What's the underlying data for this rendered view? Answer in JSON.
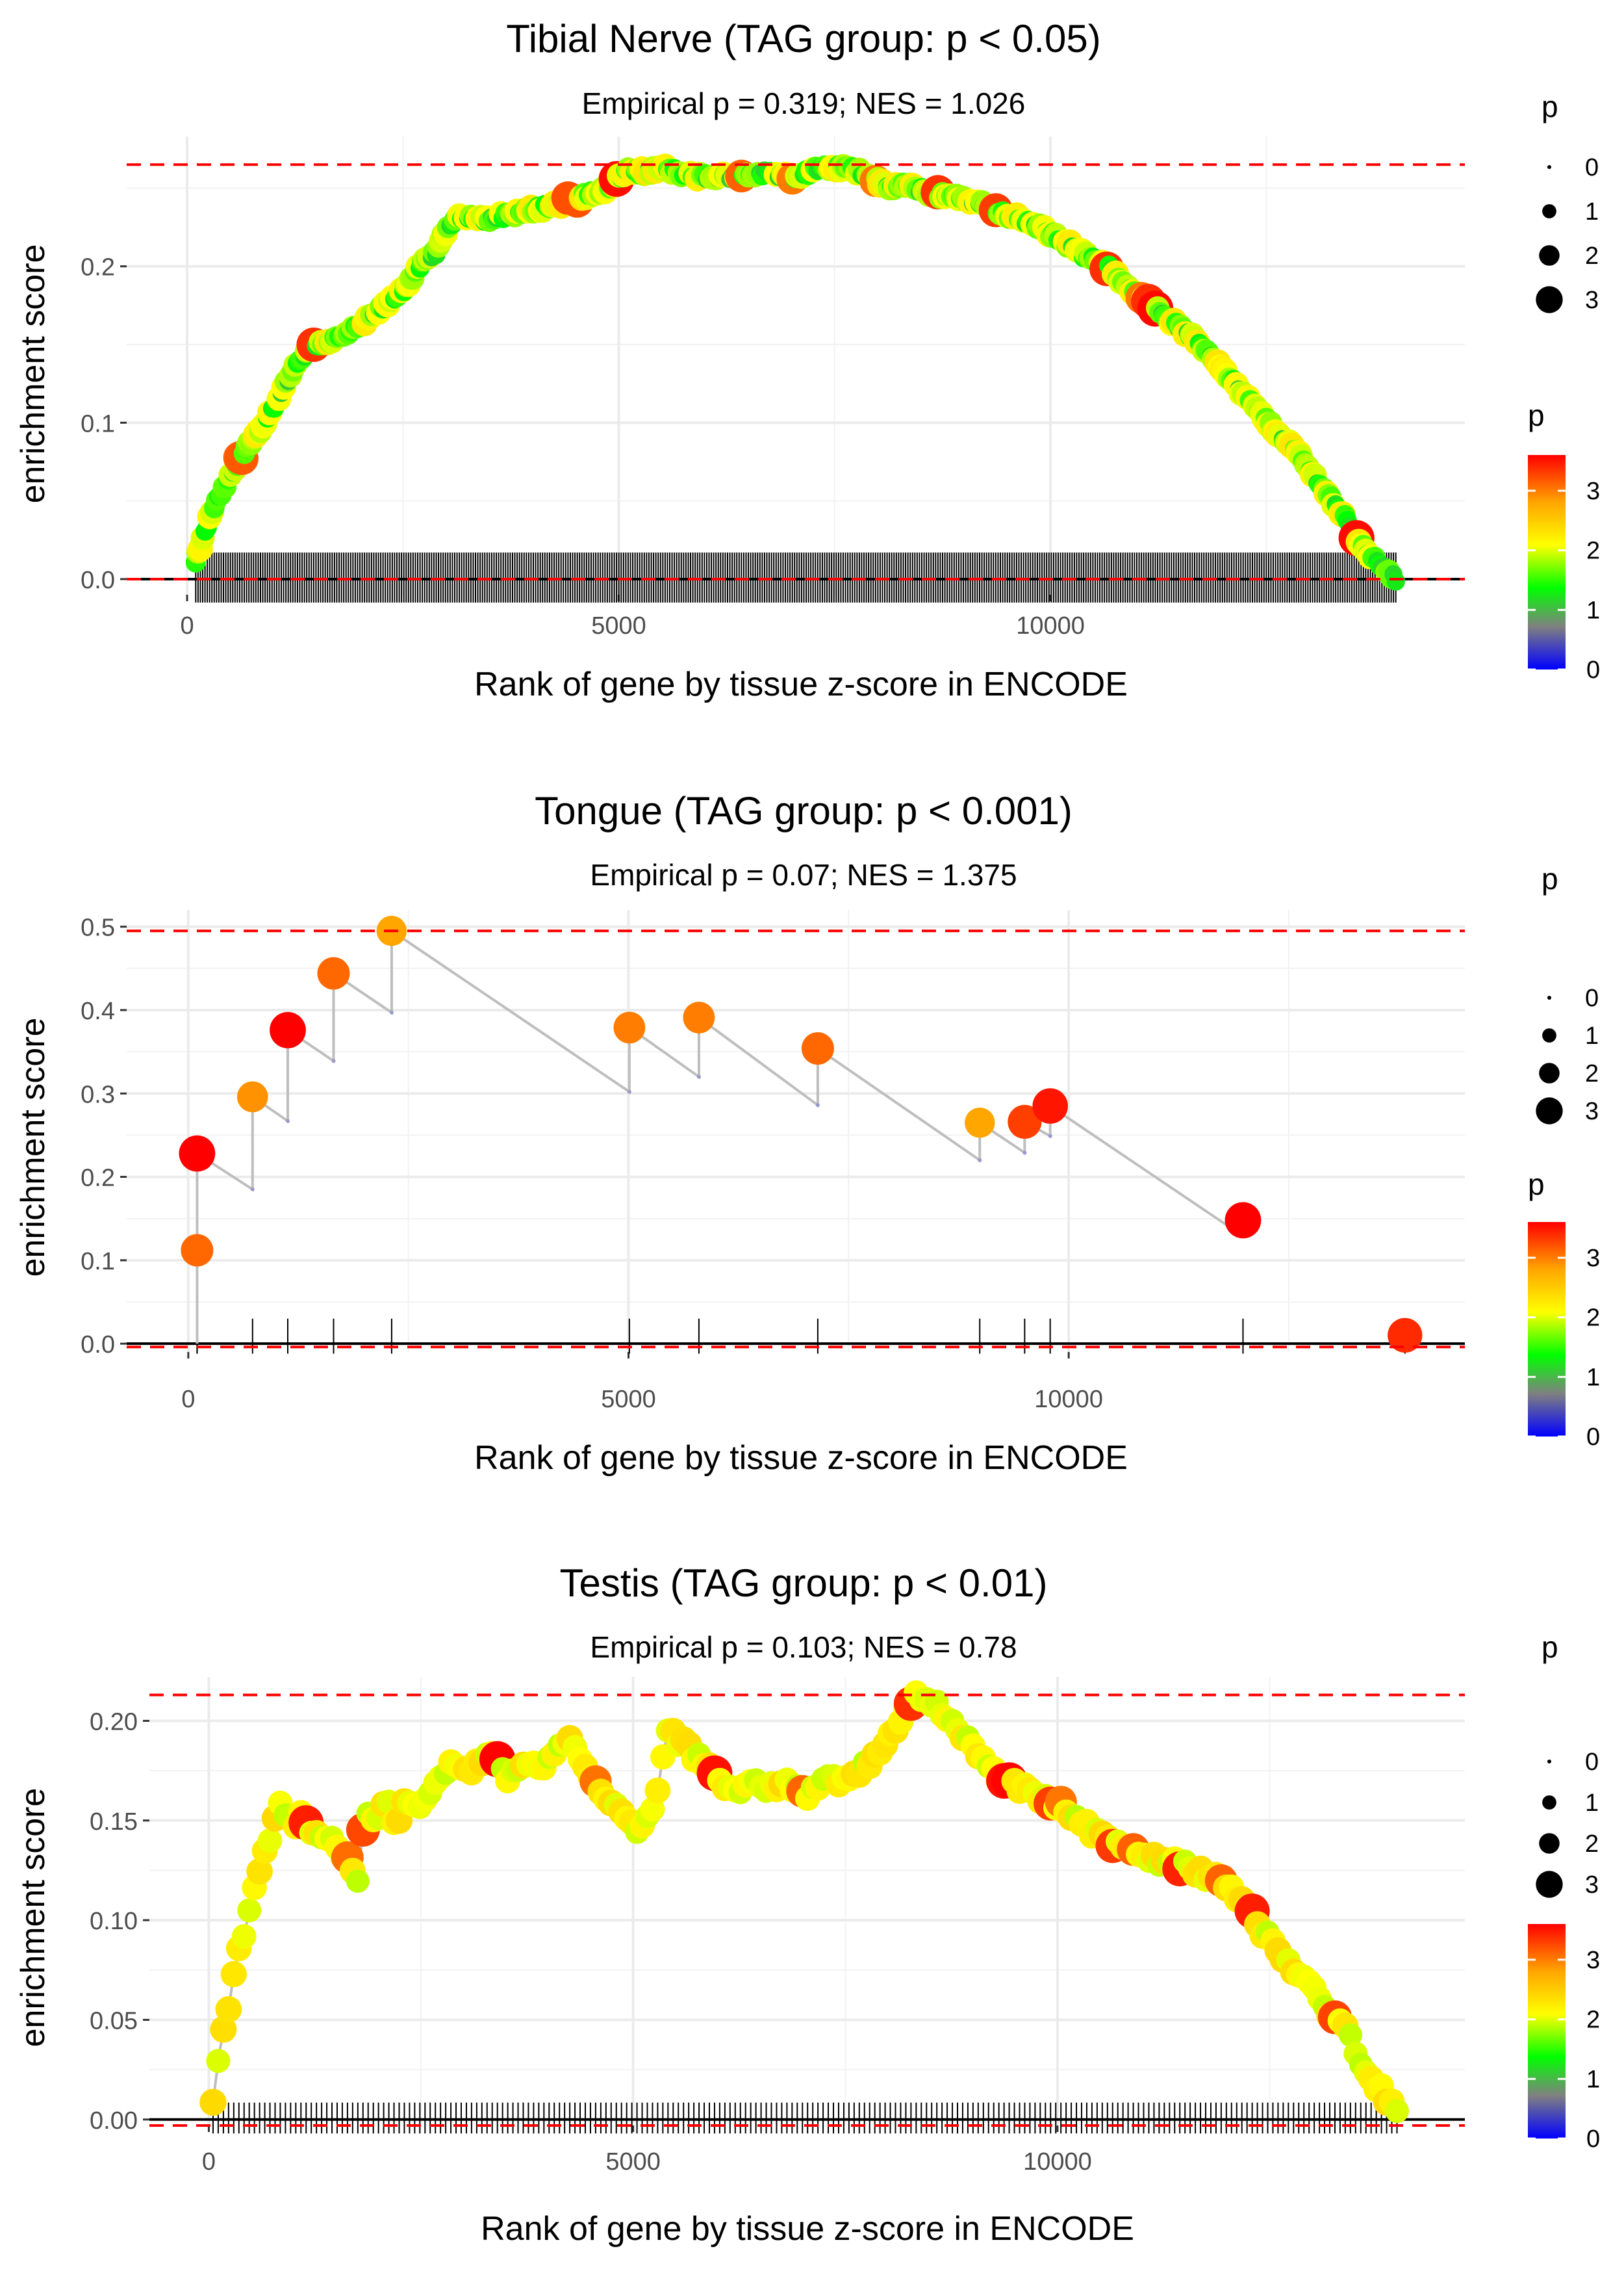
{
  "chart_data": [
    {
      "type": "line",
      "title": "Tibial Nerve (TAG group: p < 0.05)",
      "subtitle": "Empirical p = 0.319; NES = 1.026",
      "xlabel": "Rank of gene by tissue z-score in ENCODE",
      "ylabel": "enrichment score",
      "xlim": [
        -700,
        14800
      ],
      "ylim": [
        -0.01,
        0.283
      ],
      "xticks": [
        {
          "v": 0,
          "label": "0"
        },
        {
          "v": 5000,
          "label": "5000"
        },
        {
          "v": 10000,
          "label": "10000"
        }
      ],
      "yticks": [
        {
          "v": 0,
          "label": "0.0"
        },
        {
          "v": 0.1,
          "label": "0.1"
        },
        {
          "v": 0.2,
          "label": "0.2"
        }
      ],
      "max_es": 0.265,
      "min_es": 0.0,
      "dense": true,
      "anchors": [
        [
          100,
          0.01
        ],
        [
          150,
          0.02
        ],
        [
          300,
          0.045
        ],
        [
          500,
          0.065
        ],
        [
          700,
          0.085
        ],
        [
          900,
          0.1
        ],
        [
          1100,
          0.12
        ],
        [
          1300,
          0.14
        ],
        [
          1500,
          0.15
        ],
        [
          1800,
          0.155
        ],
        [
          2000,
          0.162
        ],
        [
          2300,
          0.175
        ],
        [
          2500,
          0.185
        ],
        [
          2700,
          0.2
        ],
        [
          2900,
          0.21
        ],
        [
          3000,
          0.223
        ],
        [
          3100,
          0.23
        ],
        [
          3300,
          0.232
        ],
        [
          3500,
          0.23
        ],
        [
          3700,
          0.233
        ],
        [
          4000,
          0.236
        ],
        [
          4300,
          0.24
        ],
        [
          4600,
          0.245
        ],
        [
          4900,
          0.25
        ],
        [
          5100,
          0.262
        ],
        [
          5300,
          0.26
        ],
        [
          5500,
          0.263
        ],
        [
          5800,
          0.258
        ],
        [
          6100,
          0.257
        ],
        [
          6400,
          0.258
        ],
        [
          6700,
          0.26
        ],
        [
          7000,
          0.257
        ],
        [
          7300,
          0.262
        ],
        [
          7600,
          0.263
        ],
        [
          7900,
          0.259
        ],
        [
          8100,
          0.25
        ],
        [
          8300,
          0.252
        ],
        [
          8600,
          0.247
        ],
        [
          8900,
          0.244
        ],
        [
          9200,
          0.24
        ],
        [
          9500,
          0.233
        ],
        [
          9800,
          0.227
        ],
        [
          10100,
          0.218
        ],
        [
          10400,
          0.207
        ],
        [
          10700,
          0.198
        ],
        [
          10900,
          0.185
        ],
        [
          11100,
          0.178
        ],
        [
          11400,
          0.165
        ],
        [
          11700,
          0.152
        ],
        [
          12000,
          0.135
        ],
        [
          12200,
          0.12
        ],
        [
          12400,
          0.108
        ],
        [
          12600,
          0.095
        ],
        [
          12800,
          0.085
        ],
        [
          13000,
          0.07
        ],
        [
          13200,
          0.055
        ],
        [
          13400,
          0.04
        ],
        [
          13600,
          0.022
        ],
        [
          13800,
          0.01
        ],
        [
          14000,
          0.0
        ]
      ],
      "color_scale": {
        "title": "p",
        "stops": [
          "#0000ff",
          "#808080",
          "#00ff00",
          "#ffff00",
          "#ffa500",
          "#ff0000"
        ],
        "min": 0,
        "max": 3.6,
        "ticks": [
          {
            "v": 0,
            "label": "0"
          },
          {
            "v": 1,
            "label": "1"
          },
          {
            "v": 2,
            "label": "2"
          },
          {
            "v": 3,
            "label": "3"
          }
        ]
      },
      "size_legend": {
        "title": "p",
        "items": [
          {
            "v": 0,
            "label": "0"
          },
          {
            "v": 1,
            "label": "1"
          },
          {
            "v": 2,
            "label": "2"
          },
          {
            "v": 3,
            "label": "3"
          }
        ]
      }
    },
    {
      "type": "line",
      "title": "Tongue (TAG group: p < 0.001)",
      "subtitle": "Empirical p = 0.07; NES = 1.375",
      "xlabel": "Rank of gene by tissue z-score in ENCODE",
      "ylabel": "enrichment score",
      "xlim": [
        -700,
        14500
      ],
      "ylim": [
        -0.01,
        0.52
      ],
      "xticks": [
        {
          "v": 0,
          "label": "0"
        },
        {
          "v": 5000,
          "label": "5000"
        },
        {
          "v": 10000,
          "label": "10000"
        }
      ],
      "yticks": [
        {
          "v": 0,
          "label": "0.0"
        },
        {
          "v": 0.1,
          "label": "0.1"
        },
        {
          "v": 0.2,
          "label": "0.2"
        },
        {
          "v": 0.3,
          "label": "0.3"
        },
        {
          "v": 0.4,
          "label": "0.4"
        },
        {
          "v": 0.5,
          "label": "0.5"
        }
      ],
      "max_es": 0.495,
      "min_es": -0.004,
      "dense": false,
      "points": [
        [
          100,
          0.112,
          3.1
        ],
        [
          100,
          0.228,
          3.6
        ],
        [
          730,
          0.296,
          2.9
        ],
        [
          1130,
          0.376,
          3.6
        ],
        [
          1650,
          0.444,
          3.1
        ],
        [
          2310,
          0.495,
          2.8
        ],
        [
          5010,
          0.379,
          3.0
        ],
        [
          5800,
          0.391,
          3.0
        ],
        [
          7150,
          0.354,
          3.1
        ],
        [
          8990,
          0.265,
          2.8
        ],
        [
          9500,
          0.266,
          3.3
        ],
        [
          9790,
          0.285,
          3.5
        ],
        [
          11980,
          0.148,
          3.6
        ],
        [
          13820,
          0.01,
          3.4
        ]
      ],
      "troughs": [
        [
          730,
          0.185
        ],
        [
          1130,
          0.267
        ],
        [
          1650,
          0.339
        ],
        [
          2310,
          0.397
        ],
        [
          5010,
          0.302
        ],
        [
          5800,
          0.32
        ],
        [
          7150,
          0.286
        ],
        [
          8990,
          0.22
        ],
        [
          9500,
          0.229
        ],
        [
          9790,
          0.249
        ],
        [
          11980,
          0.129
        ]
      ],
      "color_scale": {
        "title": "p",
        "stops": [
          "#0000ff",
          "#808080",
          "#00ff00",
          "#ffff00",
          "#ffa500",
          "#ff0000"
        ],
        "min": 0,
        "max": 3.6,
        "ticks": [
          {
            "v": 0,
            "label": "0"
          },
          {
            "v": 1,
            "label": "1"
          },
          {
            "v": 2,
            "label": "2"
          },
          {
            "v": 3,
            "label": "3"
          }
        ]
      },
      "size_legend": {
        "title": "p",
        "items": [
          {
            "v": 0,
            "label": "0"
          },
          {
            "v": 1,
            "label": "1"
          },
          {
            "v": 2,
            "label": "2"
          },
          {
            "v": 3,
            "label": "3"
          }
        ]
      }
    },
    {
      "type": "line",
      "title": "Testis (TAG group: p < 0.01)",
      "subtitle": "Empirical p = 0.103; NES = 0.78",
      "xlabel": "Rank of gene by tissue z-score in ENCODE",
      "ylabel": "enrichment score",
      "xlim": [
        -700,
        14800
      ],
      "ylim": [
        -0.003,
        0.222
      ],
      "xticks": [
        {
          "v": 0,
          "label": "0"
        },
        {
          "v": 5000,
          "label": "5000"
        },
        {
          "v": 10000,
          "label": "10000"
        }
      ],
      "yticks": [
        {
          "v": 0,
          "label": "0.00"
        },
        {
          "v": 0.05,
          "label": "0.05"
        },
        {
          "v": 0.1,
          "label": "0.10"
        },
        {
          "v": 0.15,
          "label": "0.15"
        },
        {
          "v": 0.2,
          "label": "0.20"
        }
      ],
      "max_es": 0.213,
      "min_es": -0.003,
      "dense": true,
      "anchors": [
        [
          50,
          0.01
        ],
        [
          100,
          0.03
        ],
        [
          200,
          0.05
        ],
        [
          300,
          0.075
        ],
        [
          400,
          0.09
        ],
        [
          500,
          0.11
        ],
        [
          600,
          0.125
        ],
        [
          700,
          0.14
        ],
        [
          850,
          0.157
        ],
        [
          1000,
          0.148
        ],
        [
          1100,
          0.152
        ],
        [
          1300,
          0.14
        ],
        [
          1400,
          0.142
        ],
        [
          1550,
          0.135
        ],
        [
          1750,
          0.12
        ],
        [
          1850,
          0.155
        ],
        [
          2000,
          0.152
        ],
        [
          2100,
          0.16
        ],
        [
          2200,
          0.145
        ],
        [
          2350,
          0.162
        ],
        [
          2500,
          0.155
        ],
        [
          2700,
          0.17
        ],
        [
          2900,
          0.18
        ],
        [
          3100,
          0.177
        ],
        [
          3300,
          0.185
        ],
        [
          3500,
          0.172
        ],
        [
          3700,
          0.178
        ],
        [
          3900,
          0.176
        ],
        [
          4100,
          0.188
        ],
        [
          4300,
          0.19
        ],
        [
          4500,
          0.17
        ],
        [
          4700,
          0.16
        ],
        [
          4900,
          0.152
        ],
        [
          5100,
          0.145
        ],
        [
          5300,
          0.165
        ],
        [
          5400,
          0.195
        ],
        [
          5600,
          0.188
        ],
        [
          5800,
          0.18
        ],
        [
          6000,
          0.172
        ],
        [
          6200,
          0.165
        ],
        [
          6400,
          0.17
        ],
        [
          6600,
          0.165
        ],
        [
          6800,
          0.17
        ],
        [
          7000,
          0.162
        ],
        [
          7200,
          0.168
        ],
        [
          7500,
          0.172
        ],
        [
          7800,
          0.178
        ],
        [
          8000,
          0.19
        ],
        [
          8200,
          0.205
        ],
        [
          8300,
          0.213
        ],
        [
          8500,
          0.21
        ],
        [
          8700,
          0.203
        ],
        [
          8900,
          0.193
        ],
        [
          9200,
          0.175
        ],
        [
          9500,
          0.168
        ],
        [
          9800,
          0.162
        ],
        [
          10100,
          0.155
        ],
        [
          10400,
          0.145
        ],
        [
          10700,
          0.137
        ],
        [
          11000,
          0.132
        ],
        [
          11300,
          0.13
        ],
        [
          11600,
          0.125
        ],
        [
          11900,
          0.12
        ],
        [
          12200,
          0.108
        ],
        [
          12500,
          0.09
        ],
        [
          12800,
          0.075
        ],
        [
          13100,
          0.06
        ],
        [
          13400,
          0.045
        ],
        [
          13600,
          0.028
        ],
        [
          13800,
          0.015
        ],
        [
          14000,
          0.005
        ]
      ],
      "color_scale": {
        "title": "p",
        "stops": [
          "#0000ff",
          "#808080",
          "#00ff00",
          "#ffff00",
          "#ffa500",
          "#ff0000"
        ],
        "min": 0,
        "max": 3.6,
        "ticks": [
          {
            "v": 0,
            "label": "0"
          },
          {
            "v": 1,
            "label": "1"
          },
          {
            "v": 2,
            "label": "2"
          },
          {
            "v": 3,
            "label": "3"
          }
        ]
      },
      "size_legend": {
        "title": "p",
        "items": [
          {
            "v": 0,
            "label": "0"
          },
          {
            "v": 1,
            "label": "1"
          },
          {
            "v": 2,
            "label": "2"
          },
          {
            "v": 3,
            "label": "3"
          }
        ]
      }
    }
  ]
}
